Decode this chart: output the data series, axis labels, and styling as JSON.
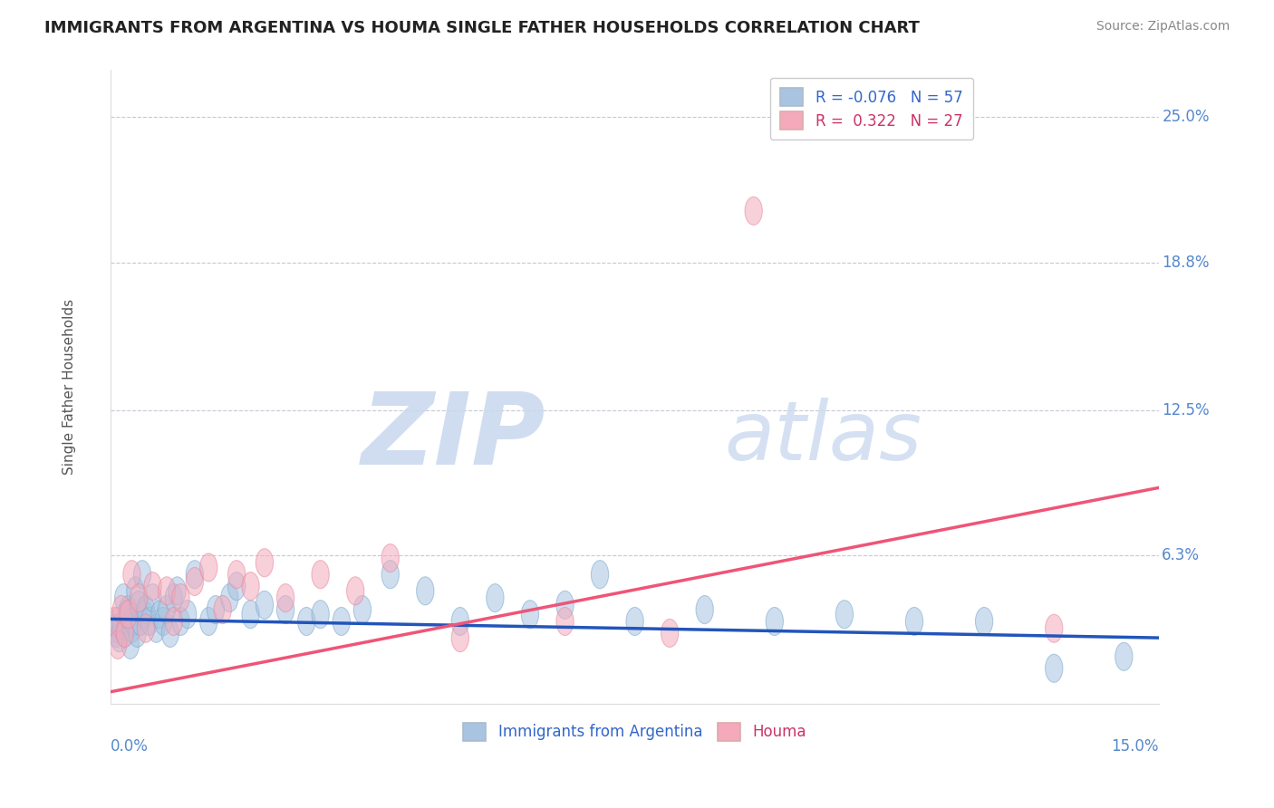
{
  "title": "IMMIGRANTS FROM ARGENTINA VS HOUMA SINGLE FATHER HOUSEHOLDS CORRELATION CHART",
  "source": "Source: ZipAtlas.com",
  "ylabel": "Single Father Households",
  "xlim": [
    0.0,
    15.0
  ],
  "ylim": [
    0.0,
    27.0
  ],
  "yticks": [
    0.0,
    6.3,
    12.5,
    18.8,
    25.0
  ],
  "ytick_labels": [
    "",
    "6.3%",
    "12.5%",
    "18.8%",
    "25.0%"
  ],
  "xtick_labels": [
    "0.0%",
    "15.0%"
  ],
  "blue_color": "#A8C4E0",
  "pink_color": "#F4AABB",
  "blue_edge_color": "#7AAAD0",
  "pink_edge_color": "#E888A0",
  "blue_line_color": "#2255BB",
  "pink_line_color": "#EE5577",
  "title_color": "#222222",
  "grid_color": "#BBBBCC",
  "blue_scatter_x": [
    0.05,
    0.08,
    0.1,
    0.12,
    0.15,
    0.18,
    0.2,
    0.22,
    0.25,
    0.28,
    0.3,
    0.32,
    0.35,
    0.38,
    0.4,
    0.42,
    0.45,
    0.48,
    0.5,
    0.55,
    0.6,
    0.65,
    0.7,
    0.75,
    0.8,
    0.85,
    0.9,
    0.95,
    1.0,
    1.1,
    1.2,
    1.4,
    1.5,
    1.7,
    1.8,
    2.0,
    2.2,
    2.5,
    2.8,
    3.0,
    3.3,
    3.6,
    4.0,
    4.5,
    5.0,
    5.5,
    6.0,
    6.5,
    7.0,
    7.5,
    8.5,
    9.5,
    10.5,
    11.5,
    12.5,
    13.5,
    14.5
  ],
  "blue_scatter_y": [
    3.2,
    3.0,
    3.5,
    2.8,
    3.3,
    4.5,
    3.0,
    3.8,
    4.0,
    2.5,
    3.2,
    3.5,
    4.8,
    3.0,
    4.2,
    3.5,
    5.5,
    3.8,
    4.0,
    3.5,
    4.5,
    3.2,
    3.8,
    3.5,
    4.0,
    3.0,
    4.5,
    4.8,
    3.5,
    3.8,
    5.5,
    3.5,
    4.0,
    4.5,
    5.0,
    3.8,
    4.2,
    4.0,
    3.5,
    3.8,
    3.5,
    4.0,
    5.5,
    4.8,
    3.5,
    4.5,
    3.8,
    4.2,
    5.5,
    3.5,
    4.0,
    3.5,
    3.8,
    3.5,
    3.5,
    1.5,
    2.0
  ],
  "pink_scatter_x": [
    0.05,
    0.1,
    0.15,
    0.2,
    0.25,
    0.3,
    0.4,
    0.5,
    0.6,
    0.8,
    0.9,
    1.0,
    1.2,
    1.4,
    1.6,
    1.8,
    2.0,
    2.2,
    2.5,
    3.0,
    3.5,
    4.0,
    5.0,
    6.5,
    8.0,
    9.2,
    13.5
  ],
  "pink_scatter_y": [
    3.5,
    2.5,
    4.0,
    3.0,
    3.8,
    5.5,
    4.5,
    3.2,
    5.0,
    4.8,
    3.5,
    4.5,
    5.2,
    5.8,
    4.0,
    5.5,
    5.0,
    6.0,
    4.5,
    5.5,
    4.8,
    6.2,
    2.8,
    3.5,
    3.0,
    21.0,
    3.2
  ],
  "blue_trend_x": [
    0.0,
    15.0
  ],
  "blue_trend_y": [
    3.6,
    2.8
  ],
  "pink_trend_x": [
    0.0,
    15.0
  ],
  "pink_trend_y": [
    0.5,
    9.2
  ]
}
